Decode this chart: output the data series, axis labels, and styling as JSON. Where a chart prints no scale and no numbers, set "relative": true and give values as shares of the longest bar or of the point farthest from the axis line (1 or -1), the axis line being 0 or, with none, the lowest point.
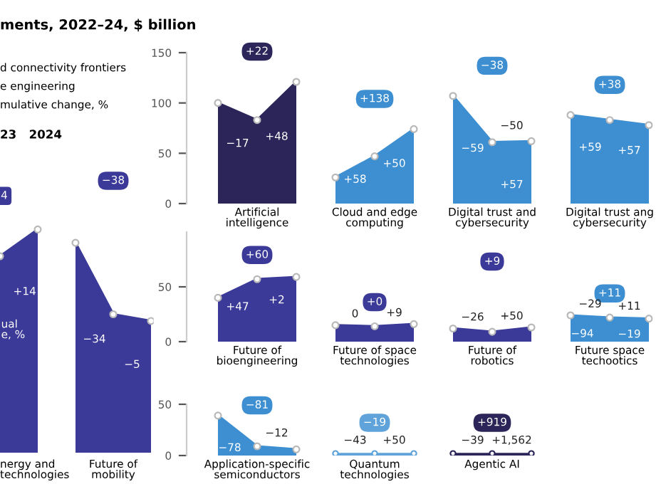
{
  "chart_data": [
    {
      "type": "area",
      "relative": true,
      "marker": "circle",
      "categories": [
        null,
        null,
        null,
        null,
        null
      ],
      "series": [
        {
          "color": "#3b3a98",
          "values": [
            0.88,
            1,
            null,
            null,
            null
          ]
        },
        {
          "color": "#3b3a98",
          "values": [
            null,
            null,
            0.94,
            0.62,
            0.59
          ]
        }
      ],
      "annotations": [
        "4",
        "+14",
        "ual\ne, %",
        "nergy and\ntechnologies",
        "Future of\nmobility",
        "−38",
        "−34",
        "−5"
      ]
    },
    {
      "type": "area",
      "categories": [
        null,
        "Artificial\nintelligence",
        null,
        null,
        "Cloud and edge\ncomputing",
        null,
        null,
        "Digital trust and\ncybersecurity",
        null,
        null,
        "Digital trust ang\ncybersecurity",
        null
      ],
      "series": [
        {
          "color": "#2b2559",
          "values": [
            100,
            83,
            121,
            null,
            null,
            null,
            null,
            null,
            null,
            null,
            null,
            null
          ]
        },
        {
          "color": "#3d8fd1",
          "values": [
            null,
            null,
            null,
            26,
            47,
            74,
            null,
            null,
            null,
            null,
            null,
            null
          ]
        },
        {
          "color": "#3d8fd1",
          "values": [
            null,
            null,
            null,
            null,
            null,
            null,
            107,
            61,
            62,
            null,
            null,
            null
          ]
        },
        {
          "color": "#3d8fd1",
          "values": [
            null,
            null,
            null,
            null,
            null,
            null,
            null,
            null,
            null,
            88,
            83,
            78
          ]
        }
      ],
      "annotations": [
        "+22",
        "−17",
        "+48",
        "+138",
        "+58",
        "+50",
        "−38",
        "−59",
        "−50",
        "+57",
        "+38",
        "+59",
        "+57"
      ],
      "ylim": [
        0,
        150
      ],
      "yticks": [
        0,
        50,
        100,
        150
      ],
      "marker": "circle"
    },
    {
      "type": "area",
      "categories": [
        null,
        "Future of\nbioengineering",
        null,
        null,
        "Future of space\ntechnologies",
        null,
        null,
        "Future of\nrobotics",
        null,
        null,
        "Future space\ntechootics",
        null
      ],
      "series": [
        {
          "color": "#3b3a98",
          "values": [
            40,
            57,
            59,
            null,
            null,
            null,
            null,
            null,
            null,
            null,
            null,
            null
          ]
        },
        {
          "color": "#3b3a98",
          "values": [
            null,
            null,
            null,
            15,
            14,
            16,
            null,
            null,
            null,
            null,
            null,
            null
          ]
        },
        {
          "color": "#3b3a98",
          "values": [
            null,
            null,
            null,
            null,
            null,
            null,
            12,
            9,
            13,
            null,
            null,
            null
          ]
        },
        {
          "color": "#3d8fd1",
          "values": [
            null,
            null,
            null,
            null,
            null,
            null,
            null,
            null,
            null,
            24,
            22,
            21
          ]
        }
      ],
      "annotations": [
        "+60",
        "+47",
        "+2",
        "+0",
        "0",
        "+9",
        "+9",
        "−26",
        "+50",
        "+11",
        "−29",
        "+11",
        "−94",
        "−19"
      ],
      "ylim": [
        0,
        100
      ],
      "yticks": [
        0,
        50
      ],
      "marker": "circle"
    },
    {
      "type": "area",
      "categories": [
        null,
        "Application-specific\nsemiconductors",
        null,
        null,
        "Quantum\ntechnologies",
        null,
        null,
        "Agentic AI",
        null
      ],
      "series": [
        {
          "color": "#3d8fd1",
          "values": [
            39,
            9,
            6,
            null,
            null,
            null,
            null,
            null,
            null
          ]
        },
        {
          "color": "#5fa3da",
          "values": [
            null,
            null,
            null,
            2,
            2,
            2,
            null,
            null,
            null
          ]
        },
        {
          "color": "#2b2559",
          "values": [
            null,
            null,
            null,
            null,
            null,
            null,
            2,
            2,
            2
          ]
        }
      ],
      "annotations": [
        "−81",
        "−78",
        "−12",
        "−19",
        "−43",
        "+50",
        "+919",
        "−39",
        "+1,562"
      ],
      "ylim": [
        0,
        50
      ],
      "yticks": [
        0,
        50
      ],
      "marker": "circle"
    },
    {
      "type": "other",
      "title": "ments, 2022–24, $ billion",
      "annotations": [
        "d connectivity frontiers",
        "e engineering",
        "mulative change, %",
        "23   2024"
      ]
    }
  ]
}
